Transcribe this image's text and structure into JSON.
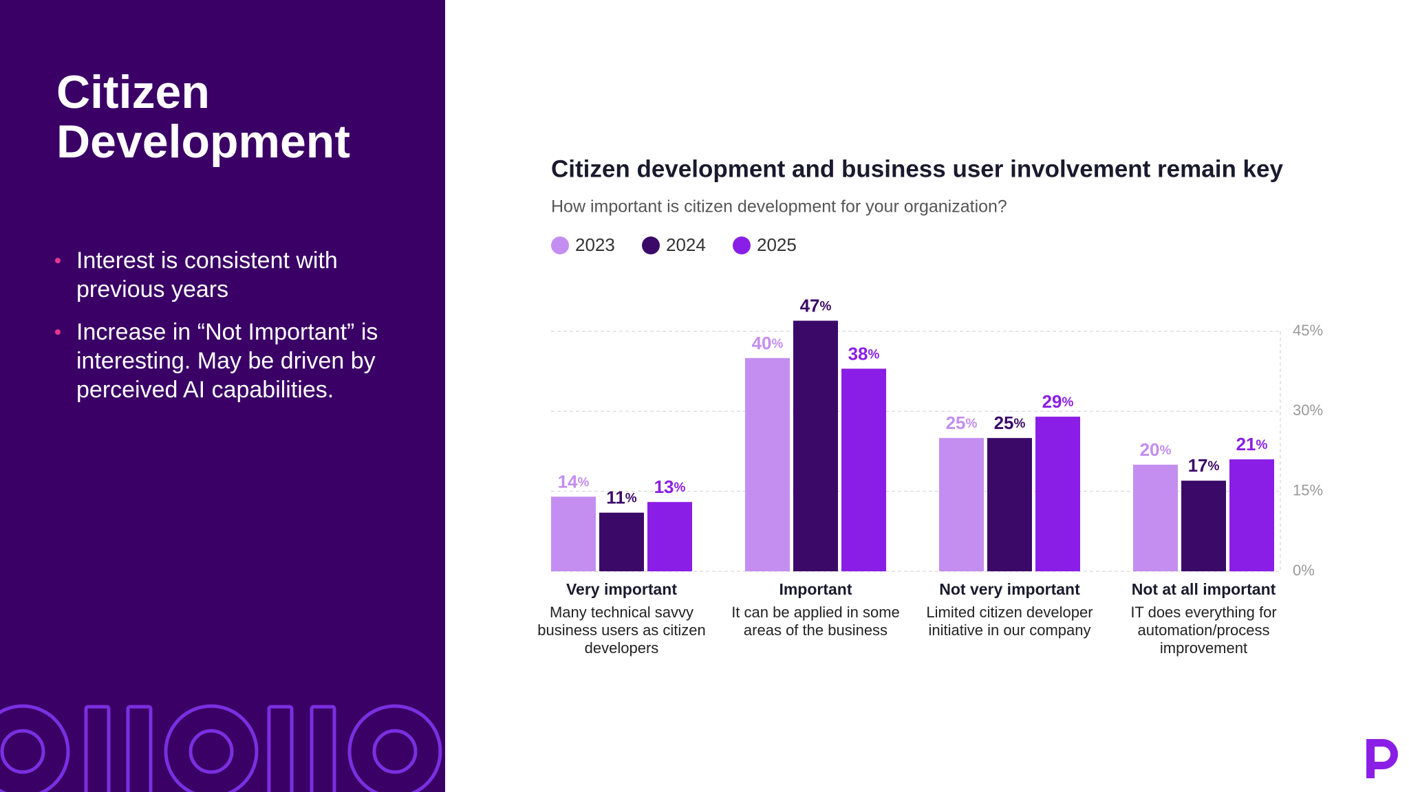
{
  "sidebar": {
    "title": "Citizen Development",
    "bullets": [
      "Interest is consistent with previous years",
      "Increase in “Not Important” is interesting. May be driven by perceived AI capabilities."
    ]
  },
  "chart_data": {
    "type": "bar",
    "title": "Citizen development and business user involvement remain key",
    "subtitle": "How important is citizen development for your organization?",
    "categories": [
      "Very important",
      "Important",
      "Not very important",
      "Not at all important"
    ],
    "category_descriptions": [
      "Many technical savvy business users as citizen developers",
      "It can be applied in some areas of the business",
      "Limited citizen developer initiative in our company",
      "IT does everything for automation/process improvement"
    ],
    "series": [
      {
        "name": "2023",
        "color": "#c38ef0",
        "values": [
          14,
          40,
          25,
          20
        ],
        "value_labels": [
          "14%",
          "40%",
          "25%",
          "20%"
        ]
      },
      {
        "name": "2024",
        "color": "#3b0a68",
        "values": [
          11,
          47,
          25,
          17
        ],
        "value_labels": [
          "11%",
          "47%",
          "25%",
          "17%"
        ]
      },
      {
        "name": "2025",
        "color": "#8a1ee6",
        "values": [
          13,
          38,
          29,
          21
        ],
        "value_labels": [
          "13%",
          "38%",
          "29%",
          "21%"
        ]
      }
    ],
    "ylim": [
      0,
      45
    ],
    "yticks": [
      {
        "value": 0,
        "label": "0%"
      },
      {
        "value": 15,
        "label": "15%"
      },
      {
        "value": 30,
        "label": "30%"
      },
      {
        "value": 45,
        "label": "45%"
      }
    ],
    "grid": true,
    "y_axis_side": "right",
    "legend_position": "top-left"
  }
}
